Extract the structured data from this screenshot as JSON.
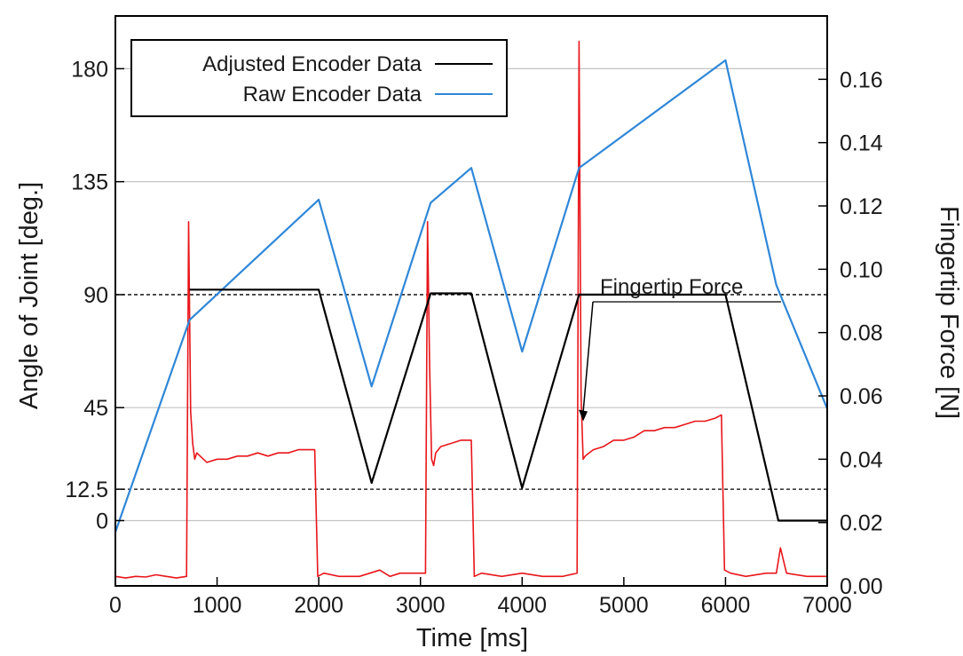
{
  "chart_data": {
    "type": "line",
    "title": "",
    "xlabel": "Time [ms]",
    "ylabel_left": "Angle of Joint [deg.]",
    "ylabel_right": "Fingertip Force [N]",
    "xlim": [
      0,
      7000
    ],
    "ylim_left": [
      -26,
      201
    ],
    "ylim_right": [
      0.0,
      0.18
    ],
    "x_ticks": [
      "0",
      "1000",
      "2000",
      "3000",
      "4000",
      "5000",
      "6000",
      "7000"
    ],
    "x_tick_values": [
      0,
      1000,
      2000,
      3000,
      4000,
      5000,
      6000,
      7000
    ],
    "y_left_ticks": [
      "0",
      "12.5",
      "45",
      "90",
      "135",
      "180"
    ],
    "y_left_tick_values": [
      0,
      12.5,
      45,
      90,
      135,
      180
    ],
    "y_right_ticks": [
      "0.00",
      "0.02",
      "0.04",
      "0.06",
      "0.08",
      "0.10",
      "0.12",
      "0.14",
      "0.16"
    ],
    "y_right_tick_values": [
      0.0,
      0.02,
      0.04,
      0.06,
      0.08,
      0.1,
      0.12,
      0.14,
      0.16
    ],
    "reference_lines_left": [
      90,
      12.5
    ],
    "grid": true,
    "legend_position": "top-left",
    "annotation": {
      "text": "Fingertip Force",
      "x": 4600,
      "y": 0.052
    },
    "series": [
      {
        "name": "Adjusted Encoder Data",
        "axis": "left",
        "color": "#000000",
        "x": [
          730,
          2000,
          2520,
          3100,
          3500,
          4000,
          4560,
          6000,
          6520,
          7000
        ],
        "y": [
          92,
          92,
          15,
          90.5,
          90.5,
          13,
          90,
          90,
          0,
          0
        ]
      },
      {
        "name": "Raw Encoder Data",
        "axis": "right",
        "color": "#2f87d8",
        "x": [
          0,
          730,
          2000,
          2520,
          3100,
          3500,
          4000,
          4560,
          6000,
          6500,
          7000
        ],
        "y": [
          0.017,
          0.084,
          0.122,
          0.063,
          0.121,
          0.132,
          0.074,
          0.132,
          0.166,
          0.095,
          0.056
        ]
      },
      {
        "name": "Fingertip Force",
        "axis": "right",
        "color": "#e8161b",
        "x": [
          0,
          100,
          200,
          300,
          400,
          500,
          600,
          700,
          720,
          740,
          760,
          780,
          800,
          900,
          1000,
          1100,
          1200,
          1300,
          1400,
          1500,
          1600,
          1700,
          1800,
          1900,
          1960,
          1990,
          2050,
          2200,
          2400,
          2600,
          2700,
          2800,
          3000,
          3050,
          3070,
          3090,
          3110,
          3130,
          3150,
          3200,
          3300,
          3400,
          3500,
          3530,
          3600,
          3800,
          4000,
          4200,
          4400,
          4540,
          4560,
          4580,
          4600,
          4620,
          4700,
          4800,
          4900,
          5000,
          5100,
          5200,
          5300,
          5400,
          5500,
          5600,
          5700,
          5800,
          5900,
          5960,
          5990,
          6050,
          6200,
          6400,
          6500,
          6540,
          6600,
          6800,
          7000
        ],
        "y": [
          0.003,
          0.0025,
          0.003,
          0.0028,
          0.0035,
          0.003,
          0.0025,
          0.003,
          0.115,
          0.055,
          0.045,
          0.04,
          0.042,
          0.039,
          0.04,
          0.04,
          0.041,
          0.041,
          0.042,
          0.041,
          0.042,
          0.042,
          0.043,
          0.043,
          0.043,
          0.003,
          0.004,
          0.003,
          0.003,
          0.005,
          0.003,
          0.004,
          0.004,
          0.004,
          0.115,
          0.07,
          0.04,
          0.038,
          0.042,
          0.044,
          0.045,
          0.046,
          0.046,
          0.003,
          0.004,
          0.003,
          0.004,
          0.003,
          0.003,
          0.004,
          0.172,
          0.06,
          0.04,
          0.041,
          0.043,
          0.044,
          0.046,
          0.046,
          0.047,
          0.049,
          0.049,
          0.05,
          0.05,
          0.051,
          0.052,
          0.052,
          0.053,
          0.054,
          0.005,
          0.004,
          0.003,
          0.004,
          0.004,
          0.012,
          0.004,
          0.003,
          0.003
        ]
      }
    ]
  }
}
